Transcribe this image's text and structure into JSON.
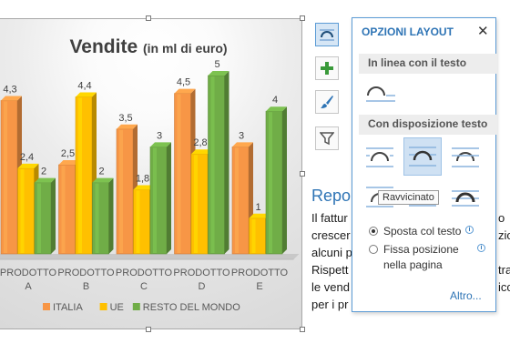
{
  "chart_data": {
    "type": "bar",
    "title": "Vendite",
    "title_sub": "(in ml di euro)",
    "categories": [
      [
        "PRODOTTO",
        "A"
      ],
      [
        "PRODOTTO",
        "B"
      ],
      [
        "PRODOTTO",
        "C"
      ],
      [
        "PRODOTTO",
        "D"
      ],
      [
        "PRODOTTO",
        "E"
      ]
    ],
    "series": [
      {
        "name": "ITALIA",
        "values": [
          4.3,
          2.5,
          3.5,
          4.5,
          3
        ],
        "labels": [
          "4,3",
          "2,5",
          "3,5",
          "4,5",
          "3"
        ],
        "color": "#f79646"
      },
      {
        "name": "UE",
        "values": [
          2.4,
          4.4,
          1.8,
          2.8,
          1
        ],
        "labels": [
          "2,4",
          "4,4",
          "1,8",
          "2,8",
          "1"
        ],
        "color": "#ffc000"
      },
      {
        "name": "RESTO DEL MONDO",
        "values": [
          2,
          2,
          3,
          5,
          4
        ],
        "labels": [
          "2",
          "2",
          "3",
          "5",
          "4"
        ],
        "color": "#70ad47"
      }
    ],
    "ylim": [
      0,
      5
    ],
    "grid": false,
    "legend_position": "bottom"
  },
  "side_buttons": [
    {
      "icon": "layout-options-icon",
      "active": true
    },
    {
      "icon": "chart-elements-icon",
      "active": false
    },
    {
      "icon": "chart-styles-icon",
      "active": false
    },
    {
      "icon": "chart-filters-icon",
      "active": false
    }
  ],
  "document": {
    "heading": "Repo",
    "lines": [
      "Il fattur",
      "crescer",
      "alcuni p",
      "Rispett",
      "le vend",
      "per i pr"
    ],
    "right_fragments": [
      "o",
      "zio",
      "",
      "tra",
      "icc",
      ""
    ]
  },
  "popup": {
    "title": "OPZIONI LAYOUT",
    "close": "✕",
    "section_inline": "In linea con il testo",
    "section_wrap": "Con disposizione testo",
    "tooltip": "Ravvicinato",
    "radio_move": "Sposta col testo",
    "radio_fixed_1": "Fissa posizione",
    "radio_fixed_2": "nella pagina",
    "more": "Altro..."
  },
  "colors": {
    "accent": "#2e74b5",
    "popup_border": "#5b9bd5",
    "selected": "#cfe1f3"
  }
}
